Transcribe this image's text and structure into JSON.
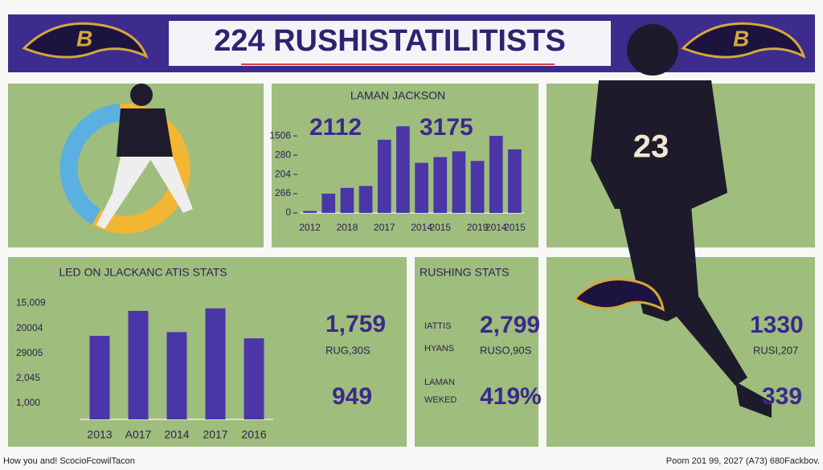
{
  "header": {
    "title": "224 RUSHISTATILITISTS"
  },
  "chart_data": [
    {
      "type": "bar",
      "title": "LAMAN JACKSON",
      "annotations": [
        "2112",
        "3175"
      ],
      "categories": [
        "2012",
        null,
        "2018",
        null,
        "2017",
        null,
        "2014",
        "2015",
        null,
        "2019",
        "2014",
        "2015"
      ],
      "values": [
        0.1,
        1.0,
        1.3,
        1.4,
        3.8,
        4.5,
        2.6,
        2.9,
        3.2,
        2.7,
        4.0,
        3.3
      ],
      "color": "#4b36a8",
      "ylim": [
        0,
        4.8
      ],
      "yticks": [
        0,
        {
          "value": 1,
          "label": "266"
        },
        {
          "value": 2,
          "label": "204"
        },
        {
          "value": 3,
          "label": "280"
        },
        {
          "value": 4,
          "label": "1506"
        }
      ]
    },
    {
      "type": "bar",
      "title": "LED ON JLACKANC ATIS STATS",
      "categories": [
        "2013",
        "A017",
        "2014",
        "2017",
        "2016"
      ],
      "values": [
        3.7,
        4.7,
        3.85,
        4.8,
        3.6
      ],
      "color": "#4b36a8",
      "ylim": [
        0.36,
        5.5
      ],
      "yticks": [
        {
          "value": 1,
          "label": "1,000"
        },
        {
          "value": 2,
          "label": "2,045"
        },
        {
          "value": 3,
          "label": "29005"
        },
        {
          "value": 4,
          "label": "20004"
        },
        {
          "value": 5,
          "label": "15,009"
        }
      ]
    }
  ],
  "left_stats": {
    "value": "1,759",
    "label": "RUG,30S",
    "value2": "949"
  },
  "rushing": {
    "title": "RUSHING STATS",
    "label1": "IATTIS",
    "label2": "HYANS",
    "value1": "2,799",
    "sub1": "RUSO,90S",
    "label3": "LAMAN",
    "label4": "WEKED",
    "value2": "419%"
  },
  "right_stats": {
    "value": "1330",
    "label": "RUSI,207",
    "value2": "339"
  },
  "footer": {
    "left": "How you and! ScocioFcowilTacon",
    "right": "Poom 201 99, 2027 (A73) 680Fackbov."
  }
}
